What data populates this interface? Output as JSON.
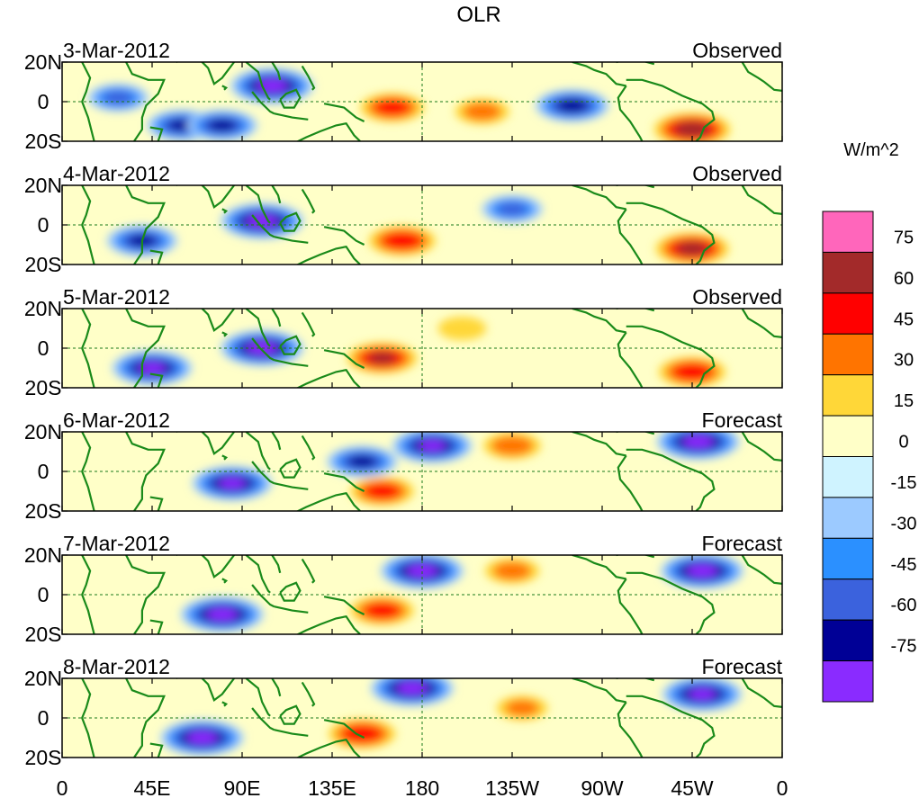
{
  "chart_data": {
    "type": "heatmap",
    "title": "OLR",
    "units": "W/m^2",
    "x_ticks": [
      "0",
      "45E",
      "90E",
      "135E",
      "180",
      "135W",
      "90W",
      "45W",
      "0"
    ],
    "x_tick_values": [
      0,
      45,
      90,
      135,
      180,
      225,
      270,
      315,
      360
    ],
    "y_ticks": [
      "20N",
      "0",
      "20S"
    ],
    "y_tick_values": [
      20,
      0,
      -20
    ],
    "xlim": [
      0,
      360
    ],
    "ylim": [
      -20,
      20
    ],
    "panels": [
      {
        "date": "3-Mar-2012",
        "kind": "Observed"
      },
      {
        "date": "4-Mar-2012",
        "kind": "Observed"
      },
      {
        "date": "5-Mar-2012",
        "kind": "Observed"
      },
      {
        "date": "6-Mar-2012",
        "kind": "Forecast"
      },
      {
        "date": "7-Mar-2012",
        "kind": "Forecast"
      },
      {
        "date": "8-Mar-2012",
        "kind": "Forecast"
      }
    ],
    "colorbar": {
      "labels": [
        "75",
        "60",
        "45",
        "30",
        "15",
        "0",
        "-15",
        "-30",
        "-45",
        "-60",
        "-75"
      ],
      "colors": [
        "#ff66bb",
        "#a32a2a",
        "#ff0000",
        "#ff7400",
        "#ffd738",
        "#ffffc8",
        "#cff3ff",
        "#9ccaff",
        "#2b90ff",
        "#3b62dd",
        "#000096",
        "#8a2bff"
      ]
    },
    "anomaly_features": [
      {
        "panel": 0,
        "lon": 105,
        "lat": 8,
        "value": -80
      },
      {
        "panel": 0,
        "lon": 28,
        "lat": 2,
        "value": -45
      },
      {
        "panel": 0,
        "lon": 60,
        "lat": -12,
        "value": -60
      },
      {
        "panel": 0,
        "lon": 80,
        "lat": -12,
        "value": -60
      },
      {
        "panel": 0,
        "lon": 165,
        "lat": -3,
        "value": 50
      },
      {
        "panel": 0,
        "lon": 210,
        "lat": -5,
        "value": 35
      },
      {
        "panel": 0,
        "lon": 255,
        "lat": -2,
        "value": -65
      },
      {
        "panel": 0,
        "lon": 315,
        "lat": -14,
        "value": 70
      },
      {
        "panel": 1,
        "lon": 100,
        "lat": 2,
        "value": -80
      },
      {
        "panel": 1,
        "lon": 40,
        "lat": -8,
        "value": -60
      },
      {
        "panel": 1,
        "lon": 170,
        "lat": -8,
        "value": 55
      },
      {
        "panel": 1,
        "lon": 225,
        "lat": 8,
        "value": -45
      },
      {
        "panel": 1,
        "lon": 315,
        "lat": -12,
        "value": 65
      },
      {
        "panel": 2,
        "lon": 100,
        "lat": 0,
        "value": -80
      },
      {
        "panel": 2,
        "lon": 45,
        "lat": -10,
        "value": -75
      },
      {
        "panel": 2,
        "lon": 160,
        "lat": -5,
        "value": 60
      },
      {
        "panel": 2,
        "lon": 200,
        "lat": 10,
        "value": 25
      },
      {
        "panel": 2,
        "lon": 315,
        "lat": -12,
        "value": 55
      },
      {
        "panel": 3,
        "lon": 85,
        "lat": -6,
        "value": -75
      },
      {
        "panel": 3,
        "lon": 150,
        "lat": 5,
        "value": -60
      },
      {
        "panel": 3,
        "lon": 185,
        "lat": 13,
        "value": -75
      },
      {
        "panel": 3,
        "lon": 160,
        "lat": -10,
        "value": 50
      },
      {
        "panel": 3,
        "lon": 225,
        "lat": 13,
        "value": 40
      },
      {
        "panel": 3,
        "lon": 318,
        "lat": 15,
        "value": -80
      },
      {
        "panel": 4,
        "lon": 80,
        "lat": -10,
        "value": -80
      },
      {
        "panel": 4,
        "lon": 180,
        "lat": 12,
        "value": -80
      },
      {
        "panel": 4,
        "lon": 160,
        "lat": -8,
        "value": 50
      },
      {
        "panel": 4,
        "lon": 320,
        "lat": 12,
        "value": -80
      },
      {
        "panel": 4,
        "lon": 225,
        "lat": 12,
        "value": 35
      },
      {
        "panel": 5,
        "lon": 70,
        "lat": -10,
        "value": -80
      },
      {
        "panel": 5,
        "lon": 175,
        "lat": 15,
        "value": -80
      },
      {
        "panel": 5,
        "lon": 150,
        "lat": -8,
        "value": 55
      },
      {
        "panel": 5,
        "lon": 320,
        "lat": 12,
        "value": -75
      },
      {
        "panel": 5,
        "lon": 230,
        "lat": 5,
        "value": 30
      }
    ]
  }
}
